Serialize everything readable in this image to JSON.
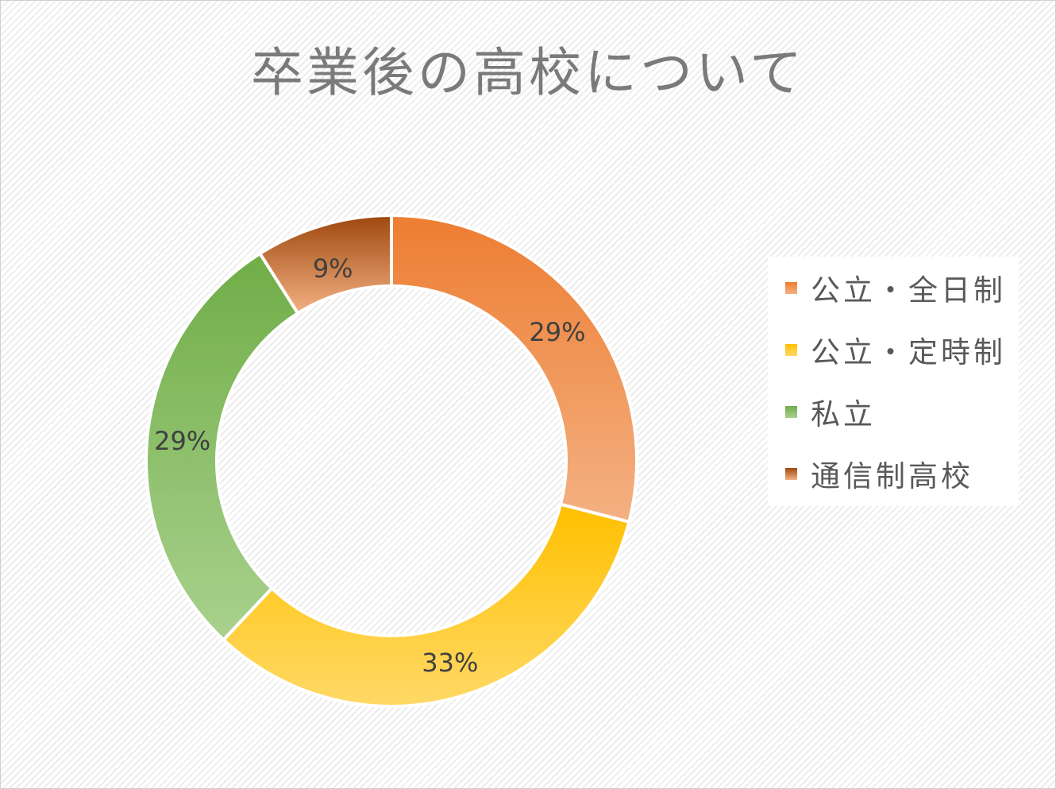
{
  "chart_data": {
    "type": "pie",
    "variant": "donut",
    "title": "卒業後の高校について",
    "categories": [
      "公立・全日制",
      "公立・定時制",
      "私立",
      "通信制高校"
    ],
    "values": [
      29,
      33,
      29,
      9
    ],
    "value_labels": [
      "29%",
      "33%",
      "29%",
      "9%"
    ],
    "legend_position": "right",
    "colors": [
      {
        "top": "#ED7D31",
        "bottom": "#F4B183"
      },
      {
        "top": "#FFC000",
        "bottom": "#FFD966"
      },
      {
        "top": "#70AD47",
        "bottom": "#A9D18E"
      },
      {
        "top": "#9E480E",
        "bottom": "#F4B183"
      }
    ]
  }
}
